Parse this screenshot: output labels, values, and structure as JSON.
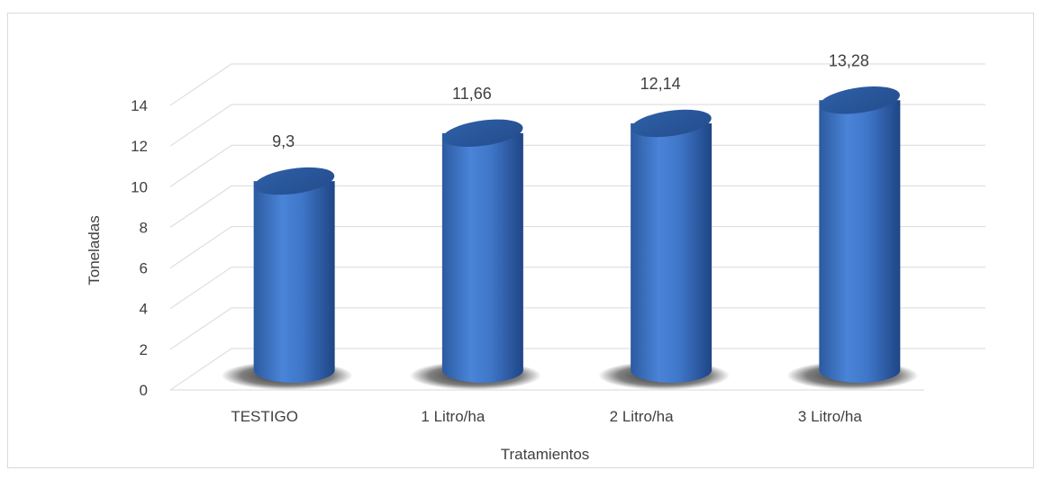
{
  "chart_data": {
    "type": "bar",
    "title": "",
    "xlabel": "Tratamientos",
    "ylabel": "Toneladas",
    "categories": [
      "TESTIGO",
      "1 Litro/ha",
      "2 Litro/ha",
      "3 Litro/ha"
    ],
    "values": [
      9.3,
      11.66,
      12.14,
      13.28
    ],
    "data_labels": [
      "9,3",
      "11,66",
      "12,14",
      "13,28"
    ],
    "ylim": [
      0,
      14
    ],
    "yticks": [
      0,
      2,
      4,
      6,
      8,
      10,
      12,
      14
    ],
    "ytick_labels": [
      "0",
      "2",
      "4",
      "6",
      "8",
      "10",
      "12",
      "14"
    ],
    "grid": true,
    "legend": "none",
    "style": "3d-cylinder",
    "bar_color": "#4472C4"
  }
}
